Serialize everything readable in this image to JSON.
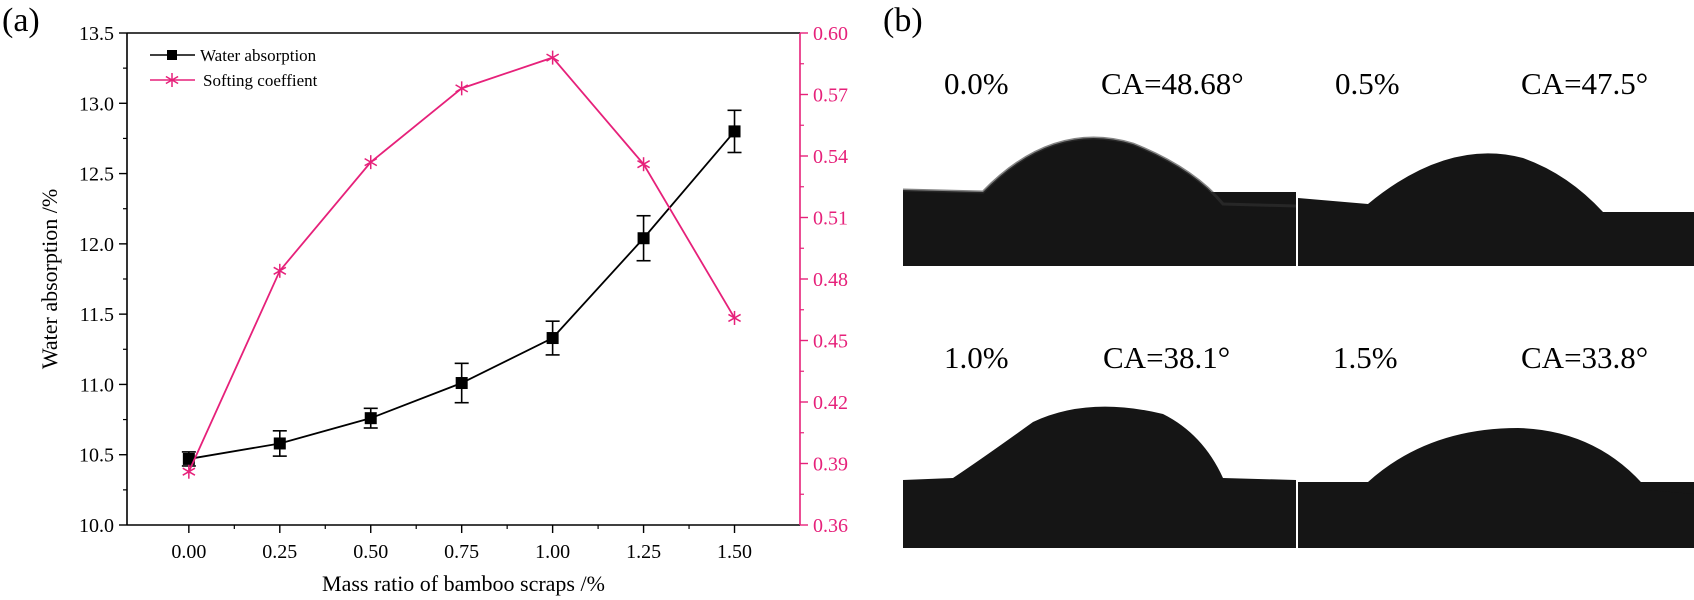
{
  "panel_a_label": "(a)",
  "panel_b_label": "(b)",
  "chart_data": {
    "type": "line",
    "title": "",
    "xlabel": "Mass ratio of bamboo scraps /%",
    "ylabel": "Water absorption /%",
    "y2label": "",
    "x": [
      0.0,
      0.25,
      0.5,
      0.75,
      1.0,
      1.25,
      1.5
    ],
    "x_tick_labels": [
      "0.00",
      "0.25",
      "0.50",
      "0.75",
      "1.00",
      "1.25",
      "1.50"
    ],
    "xlim": [
      -0.17,
      1.68
    ],
    "ylim": [
      10.0,
      13.5
    ],
    "y_ticks": [
      10.0,
      10.5,
      11.0,
      11.5,
      12.0,
      12.5,
      13.0,
      13.5
    ],
    "y_tick_labels": [
      "10.0",
      "10.5",
      "11.0",
      "11.5",
      "12.0",
      "12.5",
      "13.0",
      "13.5"
    ],
    "y2lim": [
      0.36,
      0.6
    ],
    "y2_ticks": [
      0.36,
      0.39,
      0.42,
      0.45,
      0.48,
      0.51,
      0.54,
      0.57,
      0.6
    ],
    "y2_tick_labels": [
      "0.36",
      "0.39",
      "0.42",
      "0.45",
      "0.48",
      "0.51",
      "0.54",
      "0.57",
      "0.60"
    ],
    "legend_position": "top-left",
    "series": [
      {
        "name": "Water absorption",
        "axis": "left",
        "marker": "square",
        "color": "#000000",
        "values": [
          10.47,
          10.58,
          10.76,
          11.01,
          11.33,
          12.04,
          12.8
        ],
        "error": [
          0.05,
          0.09,
          0.07,
          0.14,
          0.12,
          0.16,
          0.15
        ]
      },
      {
        "name": "Softing coeffient",
        "axis": "right",
        "marker": "asterisk",
        "color": "#e6217a",
        "values": [
          0.386,
          0.484,
          0.537,
          0.573,
          0.588,
          0.536,
          0.461
        ]
      }
    ]
  },
  "contact_angle_images": [
    {
      "ratio": "0.0%",
      "ca": "CA=48.68°"
    },
    {
      "ratio": "0.5%",
      "ca": "CA=47.5°"
    },
    {
      "ratio": "1.0%",
      "ca": "CA=38.1°"
    },
    {
      "ratio": "1.5%",
      "ca": "CA=33.8°"
    }
  ]
}
